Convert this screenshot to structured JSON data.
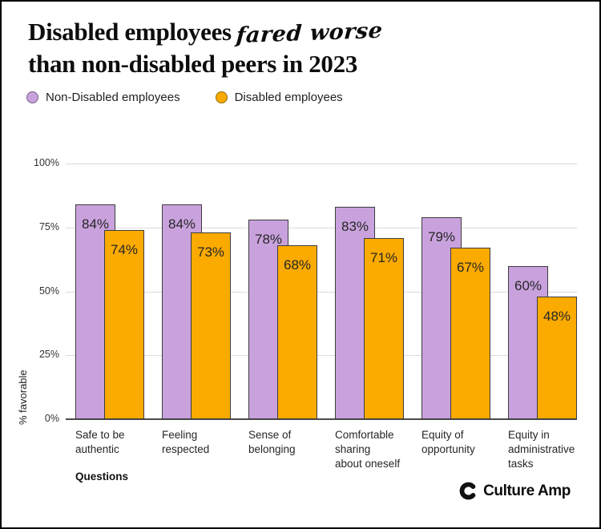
{
  "title": {
    "line1_regular": "Disabled employees",
    "line1_script": "fared worse",
    "line2": "than non-disabled peers in 2023"
  },
  "legend": [
    {
      "label": "Non-Disabled employees",
      "color": "#c9a2dd",
      "border_color": "#77608a"
    },
    {
      "label": "Disabled employees",
      "color": "#fbaa00",
      "border_color": "#8f6c0a"
    }
  ],
  "chart_data": {
    "type": "bar",
    "categories": [
      "Safe to be authentic",
      "Feeling respected",
      "Sense of belonging",
      "Comfortable sharing about oneself",
      "Equity of opportunity",
      "Equity in administrative tasks"
    ],
    "category_display_lines": [
      [
        "Safe to be",
        "authentic"
      ],
      [
        "Feeling",
        "respected"
      ],
      [
        "Sense of",
        "belonging"
      ],
      [
        "Comfortable",
        "sharing",
        "about oneself"
      ],
      [
        "Equity of",
        "opportunity"
      ],
      [
        "Equity in",
        "administrative",
        "tasks"
      ]
    ],
    "series": [
      {
        "name": "Non-Disabled employees",
        "color": "#c9a2dd",
        "values": [
          84,
          84,
          78,
          83,
          79,
          60
        ]
      },
      {
        "name": "Disabled employees",
        "color": "#fbaa00",
        "values": [
          74,
          73,
          68,
          71,
          67,
          48
        ]
      }
    ],
    "value_suffix": "%",
    "xlabel": "Questions",
    "ylabel": "% favorable",
    "ylim": [
      0,
      100
    ],
    "yticks": [
      0,
      25,
      50,
      75,
      100
    ],
    "ytick_labels": [
      "0%",
      "25%",
      "50%",
      "75%",
      "100%"
    ],
    "grid": true,
    "legend_position": "top",
    "bar_border_color": "#3d3d3d"
  },
  "footer": {
    "brand": "Culture Amp"
  }
}
